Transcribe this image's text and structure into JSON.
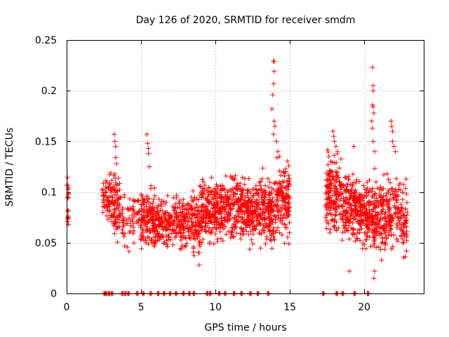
{
  "chart_data": {
    "type": "scatter",
    "title": "Day 126 of 2020, SRMTID for receiver smdm",
    "xlabel": "GPS time / hours",
    "ylabel": "SRMTID / TECUs",
    "xlim": [
      0,
      24
    ],
    "ylim": [
      0,
      0.25
    ],
    "x_ticks": [
      0,
      5,
      10,
      15,
      20
    ],
    "x_tick_labels": [
      "0",
      "5",
      "10",
      "15",
      "20"
    ],
    "y_ticks": [
      0,
      0.05,
      0.1,
      0.15,
      0.2,
      0.25
    ],
    "y_tick_labels": [
      "0",
      "0.05",
      "0.1",
      "0.15",
      "0.2",
      "0.25"
    ],
    "grid": true,
    "marker": "+",
    "colors": {
      "points": "#ff0000",
      "axes": "#000000",
      "grid": "#a0a0a0"
    },
    "seed": 20200126,
    "zero_markers_x": [
      2.5,
      2.6,
      2.8,
      3.0,
      3.7,
      3.9,
      4.1,
      4.7,
      5.1,
      5.6,
      6.1,
      6.5,
      6.9,
      7.3,
      7.8,
      8.2,
      8.5,
      9.4,
      9.6,
      10.2,
      10.6,
      11.2,
      11.7,
      12.3,
      12.8,
      13.5,
      17.2,
      18.1,
      18.5,
      19.3,
      20.2
    ],
    "segments": [
      {
        "x0": 0.0,
        "x1": 0.15,
        "n": 18,
        "ymin": 0.058,
        "ymax": 0.118
      },
      {
        "x0": 2.4,
        "x1": 3.0,
        "n": 55,
        "ymin": 0.065,
        "ymax": 0.125
      },
      {
        "x0": 3.0,
        "x1": 3.6,
        "n": 80,
        "ymin": 0.045,
        "ymax": 0.125
      },
      {
        "x0": 3.6,
        "x1": 5.0,
        "n": 70,
        "ymin": 0.04,
        "ymax": 0.105
      },
      {
        "x0": 5.0,
        "x1": 6.0,
        "n": 140,
        "ymin": 0.035,
        "ymax": 0.11
      },
      {
        "x0": 6.0,
        "x1": 7.0,
        "n": 110,
        "ymin": 0.038,
        "ymax": 0.1
      },
      {
        "x0": 7.0,
        "x1": 8.0,
        "n": 110,
        "ymin": 0.035,
        "ymax": 0.105
      },
      {
        "x0": 8.0,
        "x1": 9.0,
        "n": 120,
        "ymin": 0.03,
        "ymax": 0.11
      },
      {
        "x0": 9.0,
        "x1": 10.0,
        "n": 140,
        "ymin": 0.045,
        "ymax": 0.12
      },
      {
        "x0": 10.0,
        "x1": 11.0,
        "n": 140,
        "ymin": 0.04,
        "ymax": 0.125
      },
      {
        "x0": 11.0,
        "x1": 12.0,
        "n": 140,
        "ymin": 0.042,
        "ymax": 0.13
      },
      {
        "x0": 12.0,
        "x1": 13.0,
        "n": 150,
        "ymin": 0.038,
        "ymax": 0.12
      },
      {
        "x0": 13.0,
        "x1": 14.0,
        "n": 150,
        "ymin": 0.035,
        "ymax": 0.125
      },
      {
        "x0": 14.0,
        "x1": 15.0,
        "n": 150,
        "ymin": 0.04,
        "ymax": 0.14
      },
      {
        "x0": 17.4,
        "x1": 18.5,
        "n": 170,
        "ymin": 0.05,
        "ymax": 0.15
      },
      {
        "x0": 18.5,
        "x1": 19.5,
        "n": 150,
        "ymin": 0.045,
        "ymax": 0.125
      },
      {
        "x0": 19.5,
        "x1": 20.5,
        "n": 150,
        "ymin": 0.038,
        "ymax": 0.12
      },
      {
        "x0": 20.5,
        "x1": 21.5,
        "n": 150,
        "ymin": 0.025,
        "ymax": 0.125
      },
      {
        "x0": 21.5,
        "x1": 22.9,
        "n": 160,
        "ymin": 0.03,
        "ymax": 0.13
      }
    ],
    "peaks": [
      {
        "x": 3.2,
        "y": 0.157
      },
      {
        "x": 3.25,
        "y": 0.15
      },
      {
        "x": 3.3,
        "y": 0.145
      },
      {
        "x": 3.3,
        "y": 0.134
      },
      {
        "x": 3.35,
        "y": 0.128
      },
      {
        "x": 5.4,
        "y": 0.157
      },
      {
        "x": 5.45,
        "y": 0.148
      },
      {
        "x": 5.5,
        "y": 0.143
      },
      {
        "x": 5.5,
        "y": 0.138
      },
      {
        "x": 5.55,
        "y": 0.125
      },
      {
        "x": 13.9,
        "y": 0.229
      },
      {
        "x": 13.95,
        "y": 0.229
      },
      {
        "x": 13.95,
        "y": 0.219
      },
      {
        "x": 13.9,
        "y": 0.207
      },
      {
        "x": 13.85,
        "y": 0.196
      },
      {
        "x": 13.8,
        "y": 0.182
      },
      {
        "x": 13.95,
        "y": 0.17
      },
      {
        "x": 14.0,
        "y": 0.165
      },
      {
        "x": 13.9,
        "y": 0.157
      },
      {
        "x": 14.1,
        "y": 0.15
      },
      {
        "x": 14.2,
        "y": 0.14
      },
      {
        "x": 14.3,
        "y": 0.135
      },
      {
        "x": 17.9,
        "y": 0.16
      },
      {
        "x": 17.95,
        "y": 0.155
      },
      {
        "x": 18.0,
        "y": 0.15
      },
      {
        "x": 18.1,
        "y": 0.145
      },
      {
        "x": 18.2,
        "y": 0.14
      },
      {
        "x": 20.55,
        "y": 0.223
      },
      {
        "x": 20.6,
        "y": 0.205
      },
      {
        "x": 20.6,
        "y": 0.2
      },
      {
        "x": 20.55,
        "y": 0.186
      },
      {
        "x": 20.6,
        "y": 0.184
      },
      {
        "x": 20.65,
        "y": 0.178
      },
      {
        "x": 20.5,
        "y": 0.17
      },
      {
        "x": 20.55,
        "y": 0.163
      },
      {
        "x": 20.6,
        "y": 0.15
      },
      {
        "x": 20.7,
        "y": 0.14
      },
      {
        "x": 20.65,
        "y": 0.015
      },
      {
        "x": 20.7,
        "y": 0.022
      },
      {
        "x": 21.8,
        "y": 0.17
      },
      {
        "x": 21.85,
        "y": 0.165
      },
      {
        "x": 21.9,
        "y": 0.16
      },
      {
        "x": 21.9,
        "y": 0.15
      },
      {
        "x": 22.0,
        "y": 0.145
      },
      {
        "x": 22.1,
        "y": 0.14
      },
      {
        "x": 19.0,
        "y": 0.022
      },
      {
        "x": 19.3,
        "y": 0.145
      },
      {
        "x": 8.9,
        "y": 0.028
      }
    ]
  }
}
